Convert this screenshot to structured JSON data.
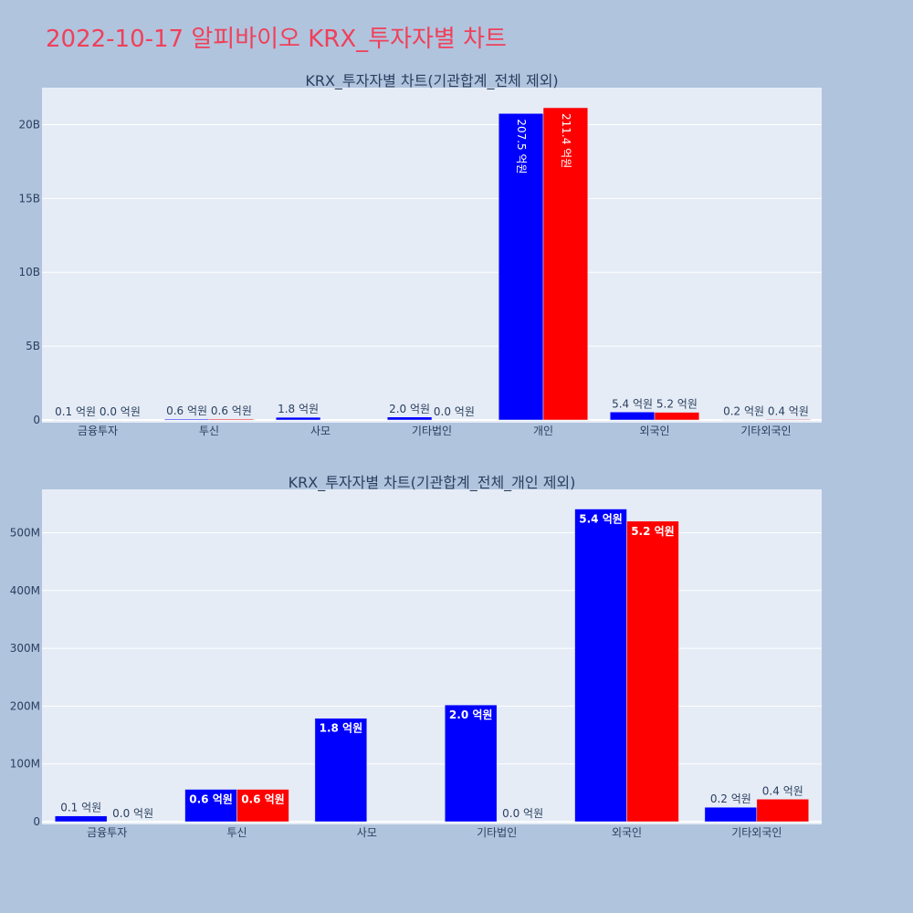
{
  "page_title": "2022-10-17 알피바이오 KRX_투자자별 차트",
  "colors": {
    "buy": "#0000ff",
    "sell": "#ff0000",
    "plot_bg": "#e5ecf6",
    "page_bg": "#b0c4de",
    "title": "#f0405a"
  },
  "chart_data": [
    {
      "type": "bar",
      "title": "KRX_투자자별 차트(기관합계_전체 제외)",
      "categories": [
        "금융투자",
        "투신",
        "사모",
        "기타법인",
        "개인",
        "외국인",
        "기타외국인"
      ],
      "series": [
        {
          "color": "#0000ff",
          "values": [
            10000000,
            60000000,
            180000000,
            200000000,
            20750000000,
            540000000,
            20000000
          ],
          "labels": [
            "0.1 억원",
            "0.6 억원",
            "1.8 억원",
            "2.0 억원",
            "207.5 억원",
            "5.4 억원",
            "0.2 억원"
          ]
        },
        {
          "color": "#ff0000",
          "values": [
            0,
            60000000,
            null,
            0,
            21140000000,
            520000000,
            40000000
          ],
          "labels": [
            "0.0 억원",
            "0.6 억원",
            "",
            "0.0 억원",
            "211.4 억원",
            "5.2 억원",
            "0.4 억원"
          ]
        }
      ],
      "ylim": [
        0,
        22500000000
      ],
      "yticks": [
        0,
        5000000000,
        10000000000,
        15000000000,
        20000000000
      ],
      "ytick_labels": [
        "0",
        "5B",
        "10B",
        "15B",
        "20B"
      ],
      "grid": true
    },
    {
      "type": "bar",
      "title": "KRX_투자자별 차트(기관합계_전체_개인 제외)",
      "categories": [
        "금융투자",
        "투신",
        "사모",
        "기타법인",
        "외국인",
        "기타외국인"
      ],
      "series": [
        {
          "color": "#0000ff",
          "values": [
            10000000,
            56000000,
            179000000,
            202000000,
            541000000,
            25000000
          ],
          "labels": [
            "0.1 억원",
            "0.6 억원",
            "1.8 억원",
            "2.0 억원",
            "5.4 억원",
            "0.2 억원"
          ]
        },
        {
          "color": "#ff0000",
          "values": [
            0,
            56000000,
            null,
            0,
            520000000,
            39000000
          ],
          "labels": [
            "0.0 억원",
            "0.6 억원",
            "",
            "0.0 억원",
            "5.2 억원",
            "0.4 억원"
          ]
        }
      ],
      "ylim": [
        0,
        575000000
      ],
      "yticks": [
        0,
        100000000,
        200000000,
        300000000,
        400000000,
        500000000
      ],
      "ytick_labels": [
        "0",
        "100M",
        "200M",
        "300M",
        "400M",
        "500M"
      ],
      "grid": true
    }
  ]
}
